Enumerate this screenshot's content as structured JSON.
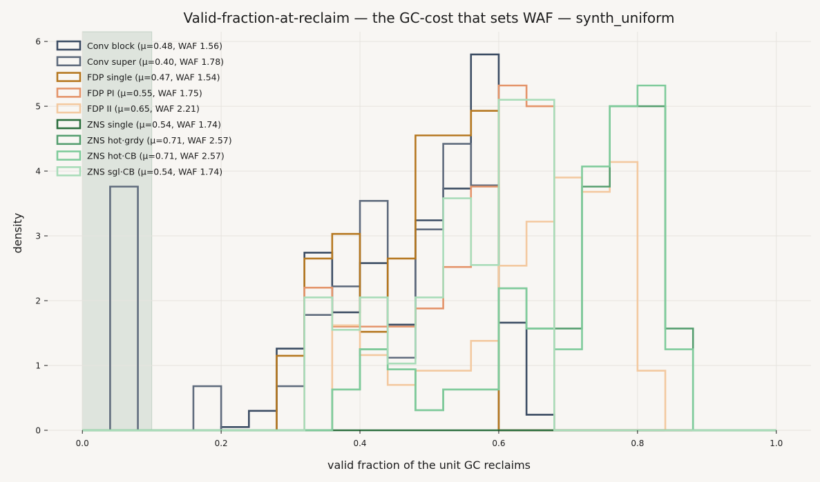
{
  "chart_data": {
    "type": "histogram",
    "title": "Valid-fraction-at-reclaim — the GC-cost that sets WAF — synth_uniform",
    "xlabel": "valid fraction of the unit GC reclaims",
    "ylabel": "density",
    "xlim": [
      -0.05,
      1.05
    ],
    "ylim": [
      0,
      6.15
    ],
    "xticks": [
      0.0,
      0.2,
      0.4,
      0.6,
      0.8,
      1.0
    ],
    "xtick_labels": [
      "0.0",
      "0.2",
      "0.4",
      "0.6",
      "0.8",
      "1.0"
    ],
    "yticks": [
      0,
      1,
      2,
      3,
      4,
      5,
      6
    ],
    "ytick_labels": [
      "0",
      "1",
      "2",
      "3",
      "4",
      "5",
      "6"
    ],
    "grid": true,
    "legend_position": "top-left",
    "bin_edges": [
      0.0,
      0.04,
      0.08,
      0.12,
      0.16,
      0.2,
      0.24,
      0.28,
      0.32,
      0.36,
      0.4,
      0.44,
      0.48,
      0.52,
      0.56,
      0.6,
      0.64,
      0.68,
      0.72,
      0.76,
      0.8,
      0.84,
      0.88,
      0.92,
      0.96,
      1.0
    ],
    "shaded_band": {
      "x_range": [
        0.0,
        0.1
      ],
      "color": "#2f6f4f"
    },
    "series": [
      {
        "name": "Conv block  (μ=0.48, WAF 1.56)",
        "color": "#3b4c63",
        "values": [
          0,
          0,
          0,
          0,
          0,
          0.05,
          0.3,
          1.26,
          2.74,
          1.82,
          2.58,
          1.63,
          3.24,
          3.73,
          5.8,
          1.66,
          0.24,
          0,
          0,
          0,
          0,
          0,
          0,
          0,
          0
        ]
      },
      {
        "name": "Conv super  (μ=0.40, WAF 1.78)",
        "color": "#5f6b7d",
        "values": [
          0,
          3.76,
          0,
          0,
          0.68,
          0,
          0,
          0.68,
          1.78,
          2.22,
          3.54,
          1.12,
          3.1,
          4.42,
          3.78,
          0,
          0,
          0,
          0,
          0,
          0,
          0,
          0,
          0,
          0
        ]
      },
      {
        "name": "FDP single  (μ=0.47, WAF 1.54)",
        "color": "#b5771f",
        "values": [
          0,
          0,
          0,
          0,
          0,
          0,
          0,
          1.15,
          2.65,
          3.03,
          1.52,
          2.65,
          4.55,
          4.55,
          4.93,
          0,
          0,
          0,
          0,
          0,
          0,
          0,
          0,
          0,
          0
        ]
      },
      {
        "name": "FDP PI  (μ=0.55, WAF 1.75)",
        "color": "#e4946a",
        "values": [
          0,
          0,
          0,
          0,
          0,
          0,
          0,
          0,
          2.2,
          1.6,
          1.6,
          1.6,
          1.88,
          2.52,
          3.76,
          5.32,
          5.0,
          0,
          0,
          0,
          0,
          0,
          0,
          0,
          0
        ]
      },
      {
        "name": "FDP II  (μ=0.65, WAF 2.21)",
        "color": "#f3c9a0",
        "values": [
          0,
          0,
          0,
          0,
          0,
          0,
          0,
          0,
          0,
          1.62,
          1.16,
          0.7,
          0.92,
          0.92,
          1.38,
          2.54,
          3.22,
          3.9,
          3.68,
          4.14,
          0.92,
          0,
          0,
          0,
          0
        ]
      },
      {
        "name": "ZNS single  (μ=0.54, WAF 1.74)",
        "color": "#2b6e3d",
        "values": [
          0,
          0,
          0,
          0,
          0,
          0,
          0,
          0,
          0,
          0,
          0,
          0,
          0,
          0,
          0,
          0,
          0,
          0,
          0,
          0,
          0,
          0,
          0,
          0,
          0
        ]
      },
      {
        "name": "ZNS hot·grdy  (μ=0.71, WAF 2.57)",
        "color": "#559e6f",
        "values": [
          0,
          0,
          0,
          0,
          0,
          0,
          0,
          0,
          0,
          0.63,
          1.25,
          0.94,
          0.31,
          0.63,
          0.63,
          2.19,
          1.57,
          1.57,
          3.76,
          5.0,
          5.0,
          1.57,
          0,
          0,
          0
        ]
      },
      {
        "name": "ZNS hot·CB  (μ=0.71, WAF 2.57)",
        "color": "#7fcb9b",
        "values": [
          0,
          0,
          0,
          0,
          0,
          0,
          0,
          0,
          0,
          0.63,
          1.25,
          0.94,
          0.31,
          0.63,
          0.63,
          2.19,
          1.57,
          1.25,
          4.07,
          5.0,
          5.32,
          1.25,
          0,
          0,
          0
        ]
      },
      {
        "name": "ZNS sgl·CB  (μ=0.54, WAF 1.74)",
        "color": "#a9dcb9",
        "values": [
          0,
          0,
          0,
          0,
          0,
          0,
          0,
          0,
          2.05,
          1.55,
          2.05,
          1.03,
          2.05,
          3.58,
          2.55,
          5.1,
          5.1,
          0,
          0,
          0,
          0,
          0,
          0,
          0,
          0
        ]
      }
    ]
  }
}
